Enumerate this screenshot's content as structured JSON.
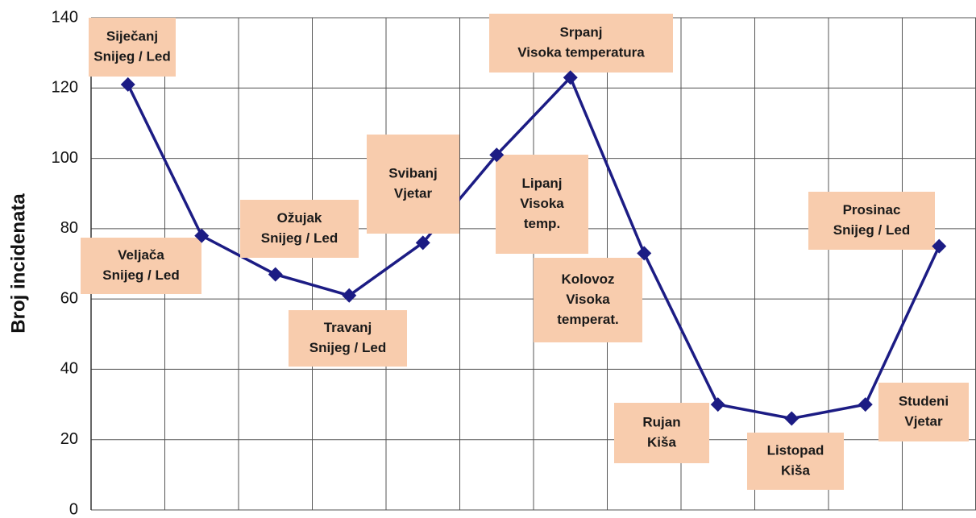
{
  "chart_data": {
    "type": "line",
    "y_label": "Broj incidenata",
    "categories": [
      null,
      null,
      null,
      null,
      null,
      null,
      null,
      null,
      null,
      null,
      null,
      null
    ],
    "series": [
      {
        "color": "#1c1c84",
        "values": [
          121,
          78,
          67,
          61,
          76,
          101,
          123,
          73,
          30,
          26,
          30,
          75
        ]
      }
    ],
    "annotations": [
      [
        "Siječanj",
        "Snijeg / Led"
      ],
      [
        "Veljača",
        "Snijeg / Led"
      ],
      [
        "Ožujak",
        "Snijeg / Led"
      ],
      [
        "Travanj",
        "Snijeg / Led"
      ],
      [
        "Svibanj",
        "Vjetar"
      ],
      [
        "Lipanj",
        "Visoka",
        "temp."
      ],
      [
        "Srpanj",
        "Visoka temperatura"
      ],
      [
        "Kolovoz",
        "Visoka",
        "temperat."
      ],
      [
        "Rujan",
        "Kiša"
      ],
      [
        "Listopad",
        "Kiša"
      ],
      [
        "Studeni",
        "Vjetar"
      ],
      [
        "Prosinac",
        "Snijeg / Led"
      ]
    ],
    "annotation_color": "#f8ccad",
    "ylim": [
      0,
      140
    ],
    "yticks": [
      0,
      20,
      40,
      60,
      80,
      100,
      120,
      140
    ],
    "grid": true
  }
}
